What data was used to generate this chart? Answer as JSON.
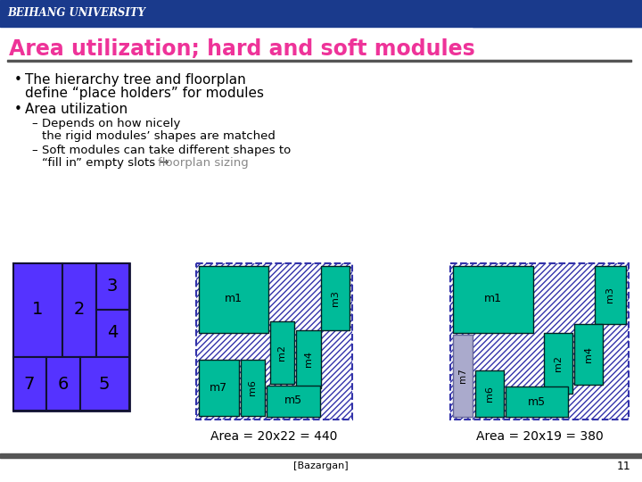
{
  "title": "Area utilization; hard and soft modules",
  "title_color": "#ee3399",
  "header_bg": "#1a3a8c",
  "header_text": "BEIHANG UNIVERSITY",
  "slide_bg": "#e8e8e8",
  "footer_text": "[Bazargan]",
  "page_num": "11",
  "blue_color": "#5533ff",
  "teal_color": "#00bb99",
  "gray_color": "#aaaacc",
  "dashed_border_color": "#3333aa",
  "area1_label": "Area = 20x22 = 440",
  "area2_label": "Area = 20x19 = 380"
}
